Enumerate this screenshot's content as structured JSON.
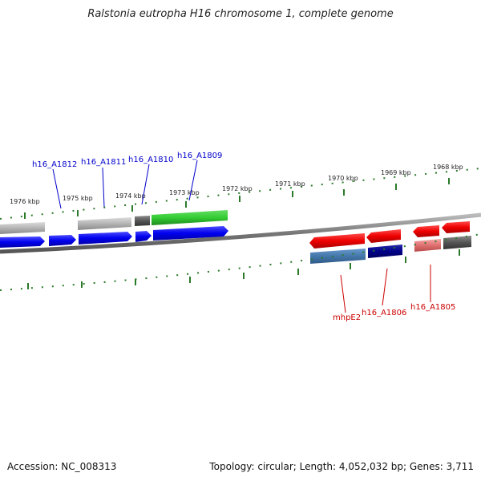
{
  "title": "Ralstonia eutropha H16 chromosome 1, complete genome",
  "footer": {
    "accession": "Accession: NC_008313",
    "summary": "Topology: circular; Length: 4,052,032 bp; Genes: 3,711"
  },
  "ticks": [
    "1976 kbp",
    "1975 kbp",
    "1974 kbp",
    "1973 kbp",
    "1972 kbp",
    "1971 kbp",
    "1970 kbp",
    "1969 kbp",
    "1968 kbp"
  ],
  "gene_labels": {
    "top": [
      "h16_A1812",
      "h16_A1811",
      "h16_A1810",
      "h16_A1809"
    ],
    "bottom": [
      "mhpE2",
      "h16_A1806",
      "h16_A1805"
    ]
  },
  "colors": {
    "forward_cds": "#0000ee",
    "reverse_cds": "#ee0000",
    "top_label": "#0000cc",
    "bottom_label": "#cc0000",
    "green_feature": "#33cc33",
    "backbone": "#777777",
    "tick": "#2a7a2a"
  }
}
